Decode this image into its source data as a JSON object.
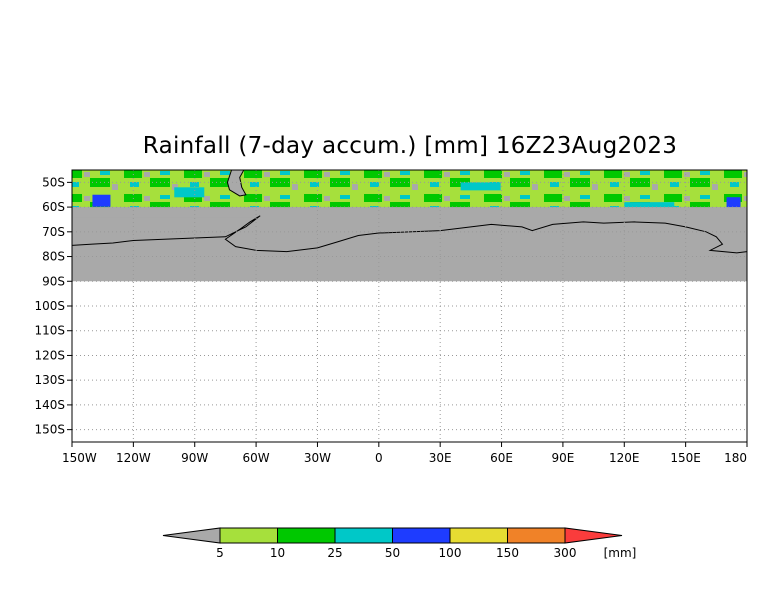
{
  "title": "Rainfall (7-day accum.) [mm] 16Z23Aug2023",
  "chart_data": {
    "type": "heatmap",
    "title": "Rainfall (7-day accum.) [mm] 16Z23Aug2023",
    "x_ticks": [
      "150W",
      "120W",
      "90W",
      "60W",
      "30W",
      "0",
      "30E",
      "60E",
      "90E",
      "120E",
      "150E",
      "180"
    ],
    "y_ticks": [
      "50S",
      "60S",
      "70S",
      "80S",
      "90S",
      "100S",
      "110S",
      "120S",
      "130S",
      "140S",
      "150S"
    ],
    "xlim": [
      -150,
      180
    ],
    "ylim": [
      -45,
      -155
    ],
    "no_data_color": "#a9a9a9",
    "grid": true,
    "legend": {
      "placement": "bottom",
      "unit": "[mm]",
      "thresholds": [
        "5",
        "10",
        "25",
        "50",
        "100",
        "150",
        "300"
      ],
      "colors": [
        "#a9a9a9",
        "#a6e03c",
        "#00c800",
        "#00c8c8",
        "#1e3cff",
        "#e6dc32",
        "#f08228",
        "#fa3c3c"
      ]
    }
  }
}
